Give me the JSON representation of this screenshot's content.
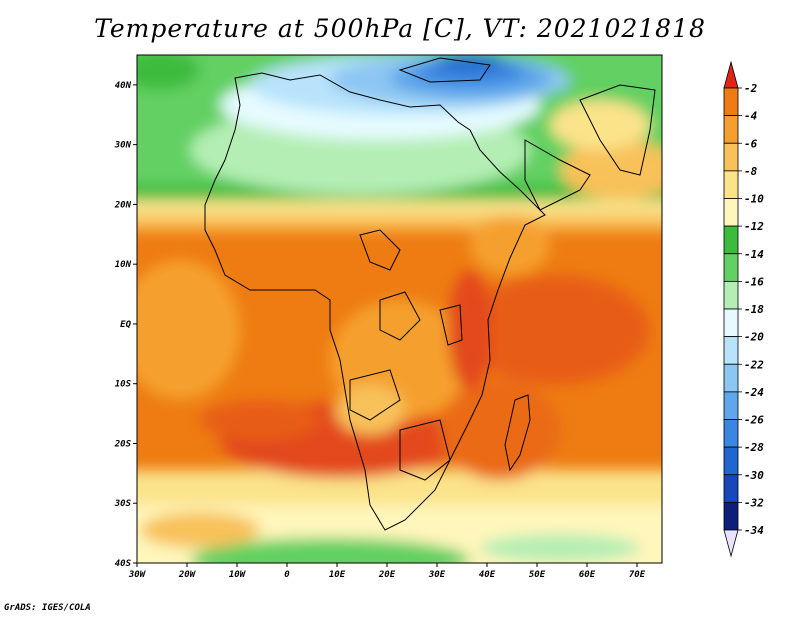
{
  "title": "Temperature at 500hPa [C], VT: 2021021818",
  "credit": "GrADS: IGES/COLA",
  "map": {
    "extent": {
      "lon": [
        -30,
        75
      ],
      "lat": [
        -40,
        45
      ]
    },
    "lat_ticks": [
      {
        "lat": 40,
        "label": "40N"
      },
      {
        "lat": 30,
        "label": "30N"
      },
      {
        "lat": 20,
        "label": "20N"
      },
      {
        "lat": 10,
        "label": "10N"
      },
      {
        "lat": 0,
        "label": "EQ"
      },
      {
        "lat": -10,
        "label": "10S"
      },
      {
        "lat": -20,
        "label": "20S"
      },
      {
        "lat": -30,
        "label": "30S"
      },
      {
        "lat": -40,
        "label": "40S"
      }
    ],
    "lon_ticks": [
      {
        "lon": -30,
        "label": "30W"
      },
      {
        "lon": -20,
        "label": "20W"
      },
      {
        "lon": -10,
        "label": "10W"
      },
      {
        "lon": 0,
        "label": "0"
      },
      {
        "lon": 10,
        "label": "10E"
      },
      {
        "lon": 20,
        "label": "20E"
      },
      {
        "lon": 30,
        "label": "30E"
      },
      {
        "lon": 40,
        "label": "40E"
      },
      {
        "lon": 50,
        "label": "50E"
      },
      {
        "lon": 60,
        "label": "60E"
      },
      {
        "lon": 70,
        "label": "70E"
      }
    ]
  },
  "legend": {
    "units": "C",
    "levels": [
      {
        "label": "-2",
        "color": "#e34a1a"
      },
      {
        "label": "-4",
        "color": "#ee7c12"
      },
      {
        "label": "-6",
        "color": "#f5a02e"
      },
      {
        "label": "-8",
        "color": "#f8c15a"
      },
      {
        "label": "-10",
        "color": "#fbe38a"
      },
      {
        "label": "-12",
        "color": "#fff6bb"
      },
      {
        "label": "-14",
        "color": "#3cbb3c"
      },
      {
        "label": "-16",
        "color": "#62d062"
      },
      {
        "label": "-18",
        "color": "#b4eeb4"
      },
      {
        "label": "-20",
        "color": "#e6fbff"
      },
      {
        "label": "-22",
        "color": "#b8e3fb"
      },
      {
        "label": "-24",
        "color": "#8cc6f2"
      },
      {
        "label": "-26",
        "color": "#5fa6ea"
      },
      {
        "label": "-28",
        "color": "#3a86e0"
      },
      {
        "label": "-30",
        "color": "#1f66d0"
      },
      {
        "label": "-32",
        "color": "#1747b8"
      },
      {
        "label": "-34",
        "color": "#0d1f7a"
      }
    ],
    "top_arrow_color": "#e2231a",
    "bottom_arrow_color": "#e8e4ff"
  }
}
